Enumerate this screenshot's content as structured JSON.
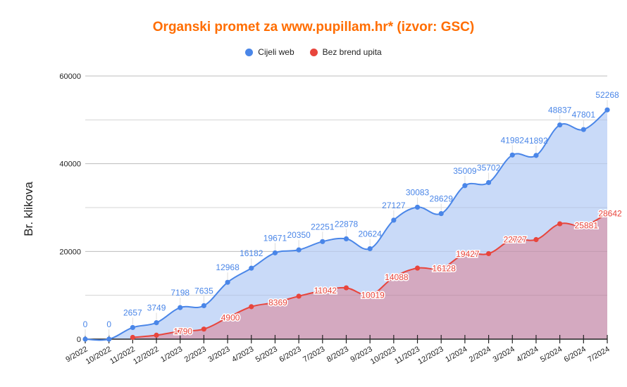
{
  "chart_data": {
    "type": "area",
    "title": "Organski promet za www.pupillam.hr* (izvor: GSC)",
    "xlabel": "",
    "ylabel": "Br. klikova",
    "ylim": [
      0,
      60000
    ],
    "yticks": [
      0,
      20000,
      40000,
      60000
    ],
    "grid": true,
    "legend_position": "top",
    "categories": [
      "9/2022",
      "10/2022",
      "11/2022",
      "12/2022",
      "1/2023",
      "2/2023",
      "3/2023",
      "4/2023",
      "5/2023",
      "6/2023",
      "7/2023",
      "8/2023",
      "9/2023",
      "10/2023",
      "11/2023",
      "12/2023",
      "1/2024",
      "2/2024",
      "3/2024",
      "4/2024",
      "5/2024",
      "6/2024",
      "7/2024"
    ],
    "series": [
      {
        "name": "Cijeli web",
        "color": "#4a86e8",
        "fill": "#c9daf8",
        "values": [
          0,
          0,
          2657,
          3749,
          7198,
          7635,
          12968,
          16182,
          19671,
          20350,
          22251,
          22878,
          20624,
          27127,
          30083,
          28629,
          35009,
          35702,
          41982,
          41892,
          48837,
          47801,
          52268
        ],
        "labels": [
          "0",
          "0",
          "2657",
          "3749",
          "7198",
          "7635",
          "12968",
          "16182",
          "19671",
          "20350",
          "22251",
          "22878",
          "20624",
          "27127",
          "30083",
          "28629",
          "35009",
          "35702",
          "41982",
          "41892",
          "48837",
          "47801",
          "52268"
        ]
      },
      {
        "name": "Bez brend upita",
        "color": "#e8453c",
        "fill": "#d5a6bd",
        "values": [
          null,
          null,
          400,
          900,
          1790,
          2300,
          4900,
          7400,
          8369,
          9800,
          11042,
          11700,
          10019,
          14088,
          16200,
          16128,
          19427,
          19500,
          22727,
          22700,
          26300,
          25881,
          28642
        ],
        "labels": [
          "",
          "",
          "",
          "",
          "1790",
          "",
          "4900",
          "",
          "8369",
          "",
          "11042",
          "",
          "10019",
          "14088",
          "",
          "16128",
          "19427",
          "",
          "22727",
          "",
          "",
          "25881",
          "28642"
        ]
      }
    ]
  },
  "colors": {
    "title": "#ff6d01",
    "blue": "#4a86e8",
    "red": "#e8453c",
    "blue_fill": "#c9daf8",
    "red_fill": "#d5a6bd",
    "grid": "#e0e0e0"
  }
}
